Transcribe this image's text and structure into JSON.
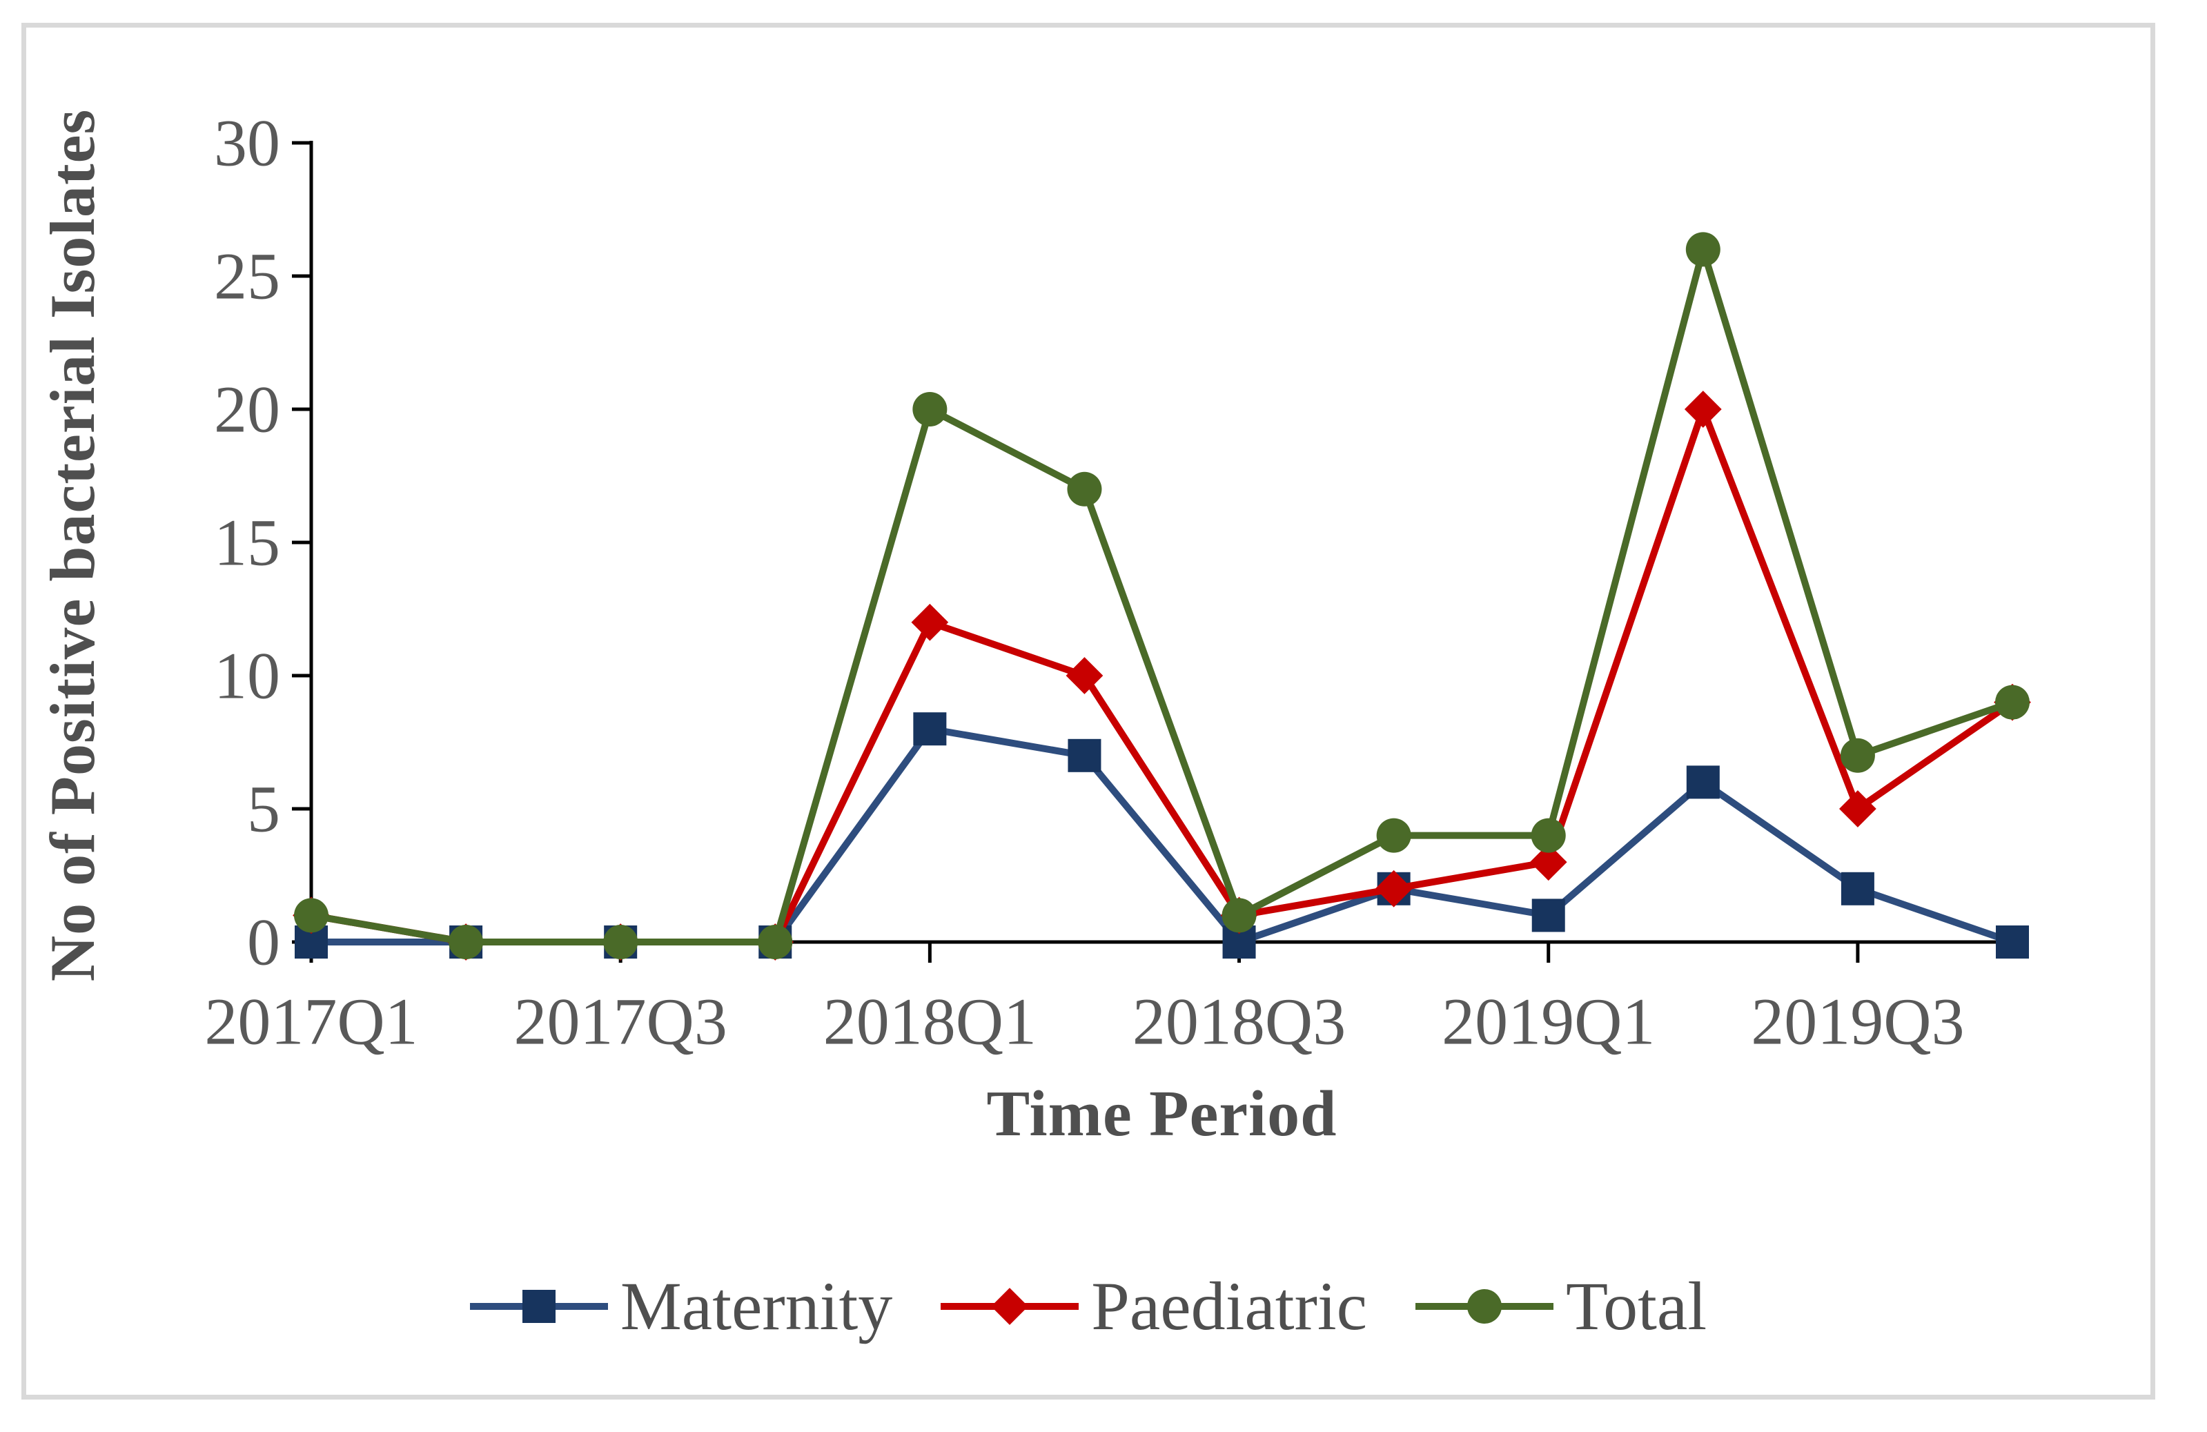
{
  "figure": {
    "background": "#FFFFFF",
    "border_color": "#D9D9D9"
  },
  "chart_data": {
    "type": "line",
    "title": "",
    "xlabel": "Time Period",
    "ylabel": "No of Positive bacterial Isolates",
    "categories": [
      "2017Q1",
      "2017Q2",
      "2017Q3",
      "2017Q4",
      "2018Q1",
      "2018Q2",
      "2018Q3",
      "2018Q4",
      "2019Q1",
      "2019Q2",
      "2019Q3",
      "2019Q4"
    ],
    "x_tick_indices": [
      0,
      2,
      4,
      6,
      8,
      10
    ],
    "x_tick_labels": [
      "2017Q1",
      "2017Q3",
      "2018Q1",
      "2018Q3",
      "2019Q1",
      "2019Q3"
    ],
    "ylim": [
      0,
      30
    ],
    "y_ticks": [
      0,
      5,
      10,
      15,
      20,
      25,
      30
    ],
    "grid": false,
    "legend_position": "bottom",
    "axis_color": "#000000",
    "tick_label_color": "#595959",
    "axis_title_color": "#4F4F4F",
    "series": [
      {
        "name": "Maternity",
        "marker": "square",
        "color": "#17345E",
        "line_color": "#2E4D7E",
        "values": [
          0,
          0,
          0,
          0,
          8,
          7,
          0,
          2,
          1,
          6,
          2,
          0
        ]
      },
      {
        "name": "Paediatric",
        "marker": "diamond",
        "color": "#C80000",
        "line_color": "#C80000",
        "values": [
          1,
          0,
          0,
          0,
          12,
          10,
          1,
          2,
          3,
          20,
          5,
          9
        ]
      },
      {
        "name": "Total",
        "marker": "circle",
        "color": "#4A6A28",
        "line_color": "#4A6A28",
        "values": [
          1,
          0,
          0,
          0,
          20,
          17,
          1,
          4,
          4,
          26,
          7,
          9
        ]
      }
    ]
  }
}
